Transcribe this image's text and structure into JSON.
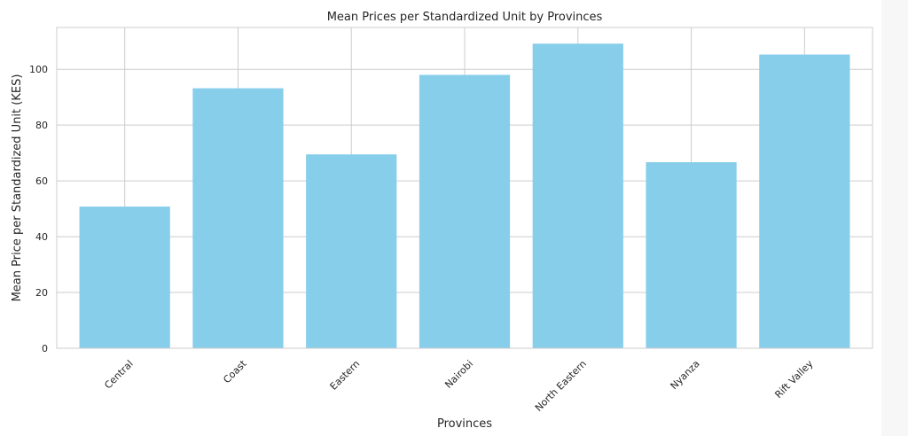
{
  "chart_data": {
    "type": "bar",
    "title": "Mean Prices per Standardized Unit by Provinces",
    "xlabel": "Provinces",
    "ylabel": "Mean Price per Standardized Unit (KES)",
    "categories": [
      "Central",
      "Coast",
      "Eastern",
      "Nairobi",
      "North Eastern",
      "Nyanza",
      "Rift Valley"
    ],
    "values": [
      50.8,
      93.2,
      69.5,
      98.0,
      109.2,
      66.7,
      105.3
    ],
    "ylim": [
      0,
      115
    ],
    "yticks": [
      0,
      20,
      40,
      60,
      80,
      100
    ],
    "grid": true,
    "bar_color": "#87ceeb",
    "x_tick_rotation": -45
  }
}
